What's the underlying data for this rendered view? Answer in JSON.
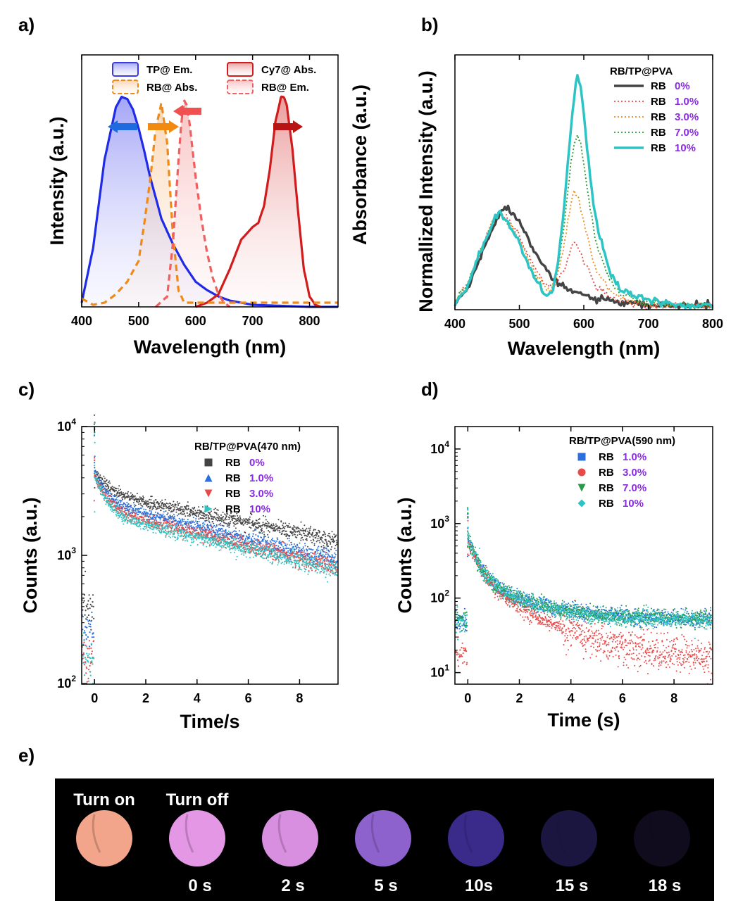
{
  "colors": {
    "percent_label": "#8a2be2",
    "photo_background": "#000000"
  },
  "panels": {
    "a": "a)",
    "b": "b)",
    "c": "c)",
    "d": "d)",
    "e": "e)"
  },
  "chart_data": [
    {
      "id": "a",
      "type": "line",
      "xlabel": "Wavelength (nm)",
      "ylabel": "Intensity (a.u.)",
      "xlim": [
        400,
        850
      ],
      "ylim": [
        0,
        1.2
      ],
      "xticks": [
        400,
        500,
        600,
        700,
        800
      ],
      "legend_position": "top",
      "series": [
        {
          "name": "TP@ Em.",
          "color": "#1f2be6",
          "style": "solid",
          "x": [
            400,
            420,
            440,
            460,
            470,
            480,
            490,
            500,
            510,
            520,
            540,
            560,
            580,
            600,
            620,
            640,
            660,
            700,
            750,
            800,
            850
          ],
          "y": [
            0.02,
            0.28,
            0.7,
            0.95,
            1.0,
            0.99,
            0.94,
            0.85,
            0.74,
            0.62,
            0.42,
            0.3,
            0.2,
            0.12,
            0.08,
            0.05,
            0.03,
            0.01,
            0.005,
            0.0,
            0.0
          ]
        },
        {
          "name": "RB@ Abs.",
          "color": "#ee8a1a",
          "style": "dash",
          "x": [
            400,
            420,
            440,
            460,
            480,
            500,
            510,
            520,
            530,
            540,
            550,
            560,
            570,
            580,
            600,
            650,
            700,
            750,
            800,
            850
          ],
          "y": [
            0.04,
            0.01,
            0.02,
            0.06,
            0.12,
            0.22,
            0.4,
            0.6,
            0.85,
            0.97,
            0.78,
            0.35,
            0.08,
            0.02,
            0.02,
            0.02,
            0.02,
            0.02,
            0.02,
            0.02
          ]
        },
        {
          "name": "RB@ Em.",
          "color": "#f06060",
          "style": "dash",
          "x": [
            530,
            550,
            560,
            570,
            575,
            580,
            585,
            590,
            600,
            610,
            620,
            630,
            640,
            650,
            660
          ],
          "y": [
            0.0,
            0.05,
            0.3,
            0.7,
            0.88,
            0.98,
            0.96,
            0.86,
            0.62,
            0.42,
            0.26,
            0.14,
            0.06,
            0.02,
            0.0
          ]
        },
        {
          "name": "Cy7@ Abs.",
          "color": "#d01c1c",
          "style": "solid",
          "x": [
            600,
            620,
            640,
            660,
            680,
            700,
            710,
            720,
            730,
            740,
            750,
            755,
            760,
            770,
            780,
            790,
            800,
            810,
            820
          ],
          "y": [
            0.0,
            0.02,
            0.06,
            0.18,
            0.32,
            0.38,
            0.4,
            0.48,
            0.65,
            0.88,
            1.0,
            1.0,
            0.96,
            0.75,
            0.45,
            0.18,
            0.05,
            0.01,
            0.0
          ]
        }
      ]
    },
    {
      "id": "b",
      "type": "line",
      "xlabel": "Wavelength (nm)",
      "ylabel": "Absorbance (a.u.)",
      "ylabel2": "Normallized Intensity (a.u.)",
      "xlim": [
        400,
        800
      ],
      "ylim": [
        0,
        1.2
      ],
      "xticks": [
        400,
        500,
        600,
        700,
        800
      ],
      "legend_title": "RB/TP@PVA",
      "legend_position": "top-right",
      "x": [
        400,
        420,
        440,
        460,
        470,
        480,
        500,
        520,
        540,
        550,
        560,
        570,
        580,
        585,
        590,
        595,
        600,
        610,
        620,
        640,
        660,
        700,
        750,
        800
      ],
      "series": [
        {
          "label": "RB",
          "pct": "0%",
          "color": "#444444",
          "width": 3.5,
          "dash": "",
          "y": [
            0.03,
            0.1,
            0.25,
            0.4,
            0.46,
            0.48,
            0.42,
            0.3,
            0.2,
            0.15,
            0.12,
            0.1,
            0.09,
            0.085,
            0.08,
            0.075,
            0.07,
            0.06,
            0.05,
            0.04,
            0.03,
            0.02,
            0.02,
            0.02
          ]
        },
        {
          "label": "RB",
          "pct": "1.0%",
          "color": "#e84a4a",
          "width": 1.8,
          "dash": "2,3",
          "y": [
            0.03,
            0.12,
            0.28,
            0.42,
            0.46,
            0.44,
            0.35,
            0.22,
            0.12,
            0.11,
            0.14,
            0.2,
            0.28,
            0.31,
            0.3,
            0.27,
            0.23,
            0.16,
            0.1,
            0.06,
            0.04,
            0.02,
            0.02,
            0.02
          ]
        },
        {
          "label": "RB",
          "pct": "3.0%",
          "color": "#ee8a1a",
          "width": 1.8,
          "dash": "2,3",
          "y": [
            0.03,
            0.12,
            0.28,
            0.42,
            0.46,
            0.43,
            0.33,
            0.2,
            0.1,
            0.1,
            0.18,
            0.32,
            0.5,
            0.56,
            0.54,
            0.48,
            0.41,
            0.28,
            0.18,
            0.09,
            0.05,
            0.02,
            0.02,
            0.02
          ]
        },
        {
          "label": "RB",
          "pct": "7.0%",
          "color": "#2a9a2a",
          "width": 1.8,
          "dash": "2,3",
          "y": [
            0.03,
            0.12,
            0.28,
            0.42,
            0.46,
            0.42,
            0.32,
            0.18,
            0.08,
            0.09,
            0.2,
            0.4,
            0.7,
            0.78,
            0.82,
            0.78,
            0.68,
            0.48,
            0.3,
            0.14,
            0.07,
            0.03,
            0.02,
            0.02
          ]
        },
        {
          "label": "RB",
          "pct": "10%",
          "color": "#2cc4c4",
          "width": 3.5,
          "dash": "",
          "y": [
            0.03,
            0.12,
            0.28,
            0.42,
            0.46,
            0.42,
            0.31,
            0.17,
            0.07,
            0.08,
            0.22,
            0.5,
            0.85,
            1.0,
            1.1,
            1.05,
            0.92,
            0.62,
            0.4,
            0.18,
            0.09,
            0.04,
            0.02,
            0.02
          ]
        }
      ]
    },
    {
      "id": "c",
      "type": "scatter",
      "xlabel": "Time/s",
      "ylabel": "Counts (a.u.)",
      "xlim": [
        -0.5,
        9.5
      ],
      "ylim": [
        100,
        10000
      ],
      "yscale": "log",
      "xticks": [
        0,
        2,
        4,
        6,
        8
      ],
      "yticks": [
        "10^2",
        "10^3",
        "10^4"
      ],
      "legend_title": "RB/TP@PVA(470 nm)",
      "legend_position": "top-right",
      "series": [
        {
          "label": "RB",
          "pct": "0%",
          "marker": "square",
          "color": "#444444",
          "pre": 400,
          "peak": 4600,
          "fast_amp": 1400,
          "fast_tau": 0.5,
          "slow_amp": 3100,
          "slow_tau": 10.8
        },
        {
          "label": "RB",
          "pct": "1.0%",
          "marker": "triangle-up",
          "color": "#2a6fdb",
          "pre": 260,
          "peak": 4400,
          "fast_amp": 1700,
          "fast_tau": 0.45,
          "slow_amp": 2600,
          "slow_tau": 9.0
        },
        {
          "label": "RB",
          "pct": "3.0%",
          "marker": "triangle-down",
          "color": "#e84a4a",
          "pre": 160,
          "peak": 4300,
          "fast_amp": 1900,
          "fast_tau": 0.42,
          "slow_amp": 2300,
          "slow_tau": 9.0
        },
        {
          "label": "RB",
          "pct": "10%",
          "marker": "triangle-right",
          "color": "#2cc4c4",
          "pre": 160,
          "peak": 4300,
          "fast_amp": 2100,
          "fast_tau": 0.4,
          "slow_amp": 2100,
          "slow_tau": 9.5
        }
      ]
    },
    {
      "id": "d",
      "type": "scatter",
      "xlabel": "Time (s)",
      "ylabel": "Counts (a.u.)",
      "xlim": [
        -0.5,
        9.5
      ],
      "ylim": [
        7,
        20000
      ],
      "yscale": "log",
      "xticks": [
        0,
        2,
        4,
        6,
        8
      ],
      "yticks": [
        "10^1",
        "10^2",
        "10^3",
        "10^4"
      ],
      "legend_title": "RB/TP@PVA(590 nm)",
      "legend_position": "top-right",
      "series": [
        {
          "label": "RB",
          "pct": "1.0%",
          "marker": "square",
          "color": "#2a6fdb",
          "pre": 50,
          "peak": 600,
          "fast_amp": 430,
          "fast_tau": 0.35,
          "slow_amp": 140,
          "slow_tau": 1.8,
          "floor": 52
        },
        {
          "label": "RB",
          "pct": "3.0%",
          "marker": "circle",
          "color": "#e84a4a",
          "pre": 18,
          "peak": 600,
          "fast_amp": 440,
          "fast_tau": 0.35,
          "slow_amp": 170,
          "slow_tau": 1.9,
          "floor": 15
        },
        {
          "label": "RB",
          "pct": "7.0%",
          "marker": "triangle-down",
          "color": "#2a9a4a",
          "pre": 50,
          "peak": 600,
          "fast_amp": 430,
          "fast_tau": 0.35,
          "slow_amp": 140,
          "slow_tau": 1.8,
          "floor": 52
        },
        {
          "label": "RB",
          "pct": "10%",
          "marker": "diamond",
          "color": "#2cc4c4",
          "pre": 48,
          "peak": 600,
          "fast_amp": 430,
          "fast_tau": 0.35,
          "slow_amp": 140,
          "slow_tau": 1.8,
          "floor": 50
        }
      ]
    }
  ],
  "photo_strip": {
    "frames": [
      {
        "top_label": "Turn on",
        "bottom_label": "",
        "color": "#f2a58a",
        "brightness": 1.0
      },
      {
        "top_label": "Turn off",
        "bottom_label": "0 s",
        "color": "#e497e4",
        "brightness": 1.0
      },
      {
        "top_label": "",
        "bottom_label": "2 s",
        "color": "#d98fe0",
        "brightness": 0.95
      },
      {
        "top_label": "",
        "bottom_label": "5 s",
        "color": "#8d62cc",
        "brightness": 0.85
      },
      {
        "top_label": "",
        "bottom_label": "10s",
        "color": "#3a2a8a",
        "brightness": 0.6
      },
      {
        "top_label": "",
        "bottom_label": "15 s",
        "color": "#1a1640",
        "brightness": 0.3
      },
      {
        "top_label": "",
        "bottom_label": "18 s",
        "color": "#100c1e",
        "brightness": 0.15
      }
    ]
  }
}
